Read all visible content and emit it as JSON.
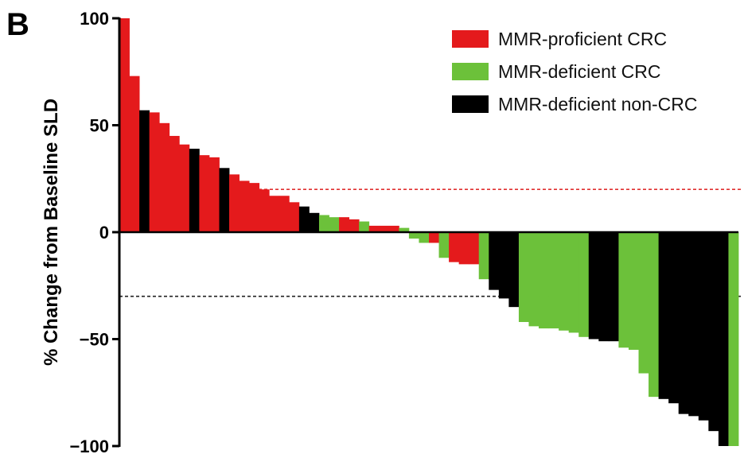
{
  "panel_label": "B",
  "chart_data": {
    "type": "bar",
    "title": "",
    "xlabel": "",
    "ylabel": "% Change from Baseline SLD",
    "ylim": [
      -100,
      100
    ],
    "yticks": [
      100,
      50,
      0,
      -50,
      -100
    ],
    "grid": false,
    "legend_position": "top-right",
    "reference_lines": [
      {
        "value": 20,
        "color": "#e03030",
        "style": "dashed"
      },
      {
        "value": -30,
        "color": "#222222",
        "style": "dashed"
      }
    ],
    "series": [
      {
        "name": "MMR-proficient CRC",
        "color": "#e41a1c"
      },
      {
        "name": "MMR-deficient CRC",
        "color": "#6cc13a"
      },
      {
        "name": "MMR-deficient non-CRC",
        "color": "#000000"
      }
    ],
    "bars": [
      {
        "value": 100,
        "series": 0
      },
      {
        "value": 73,
        "series": 0
      },
      {
        "value": 57,
        "series": 2
      },
      {
        "value": 56,
        "series": 0
      },
      {
        "value": 51,
        "series": 0
      },
      {
        "value": 45,
        "series": 0
      },
      {
        "value": 41,
        "series": 0
      },
      {
        "value": 39,
        "series": 2
      },
      {
        "value": 36,
        "series": 0
      },
      {
        "value": 35,
        "series": 0
      },
      {
        "value": 30,
        "series": 2
      },
      {
        "value": 27,
        "series": 0
      },
      {
        "value": 24,
        "series": 0
      },
      {
        "value": 23,
        "series": 0
      },
      {
        "value": 20,
        "series": 0
      },
      {
        "value": 17,
        "series": 0
      },
      {
        "value": 17,
        "series": 0
      },
      {
        "value": 14,
        "series": 0
      },
      {
        "value": 12,
        "series": 2
      },
      {
        "value": 9,
        "series": 2
      },
      {
        "value": 8,
        "series": 1
      },
      {
        "value": 7,
        "series": 1
      },
      {
        "value": 7,
        "series": 0
      },
      {
        "value": 6,
        "series": 0
      },
      {
        "value": 5,
        "series": 1
      },
      {
        "value": 3,
        "series": 0
      },
      {
        "value": 3,
        "series": 0
      },
      {
        "value": 3,
        "series": 0
      },
      {
        "value": 2,
        "series": 1
      },
      {
        "value": -3,
        "series": 1
      },
      {
        "value": -5,
        "series": 1
      },
      {
        "value": -5,
        "series": 0
      },
      {
        "value": -12,
        "series": 1
      },
      {
        "value": -14,
        "series": 0
      },
      {
        "value": -15,
        "series": 0
      },
      {
        "value": -15,
        "series": 0
      },
      {
        "value": -22,
        "series": 1
      },
      {
        "value": -27,
        "series": 2
      },
      {
        "value": -31,
        "series": 2
      },
      {
        "value": -35,
        "series": 2
      },
      {
        "value": -42,
        "series": 1
      },
      {
        "value": -44,
        "series": 1
      },
      {
        "value": -45,
        "series": 1
      },
      {
        "value": -45,
        "series": 1
      },
      {
        "value": -46,
        "series": 1
      },
      {
        "value": -47,
        "series": 1
      },
      {
        "value": -49,
        "series": 1
      },
      {
        "value": -50,
        "series": 2
      },
      {
        "value": -51,
        "series": 2
      },
      {
        "value": -51,
        "series": 2
      },
      {
        "value": -54,
        "series": 1
      },
      {
        "value": -55,
        "series": 1
      },
      {
        "value": -66,
        "series": 1
      },
      {
        "value": -77,
        "series": 1
      },
      {
        "value": -78,
        "series": 2
      },
      {
        "value": -80,
        "series": 2
      },
      {
        "value": -85,
        "series": 2
      },
      {
        "value": -86,
        "series": 2
      },
      {
        "value": -88,
        "series": 2
      },
      {
        "value": -93,
        "series": 2
      },
      {
        "value": -100,
        "series": 2
      },
      {
        "value": -100,
        "series": 1
      }
    ]
  }
}
